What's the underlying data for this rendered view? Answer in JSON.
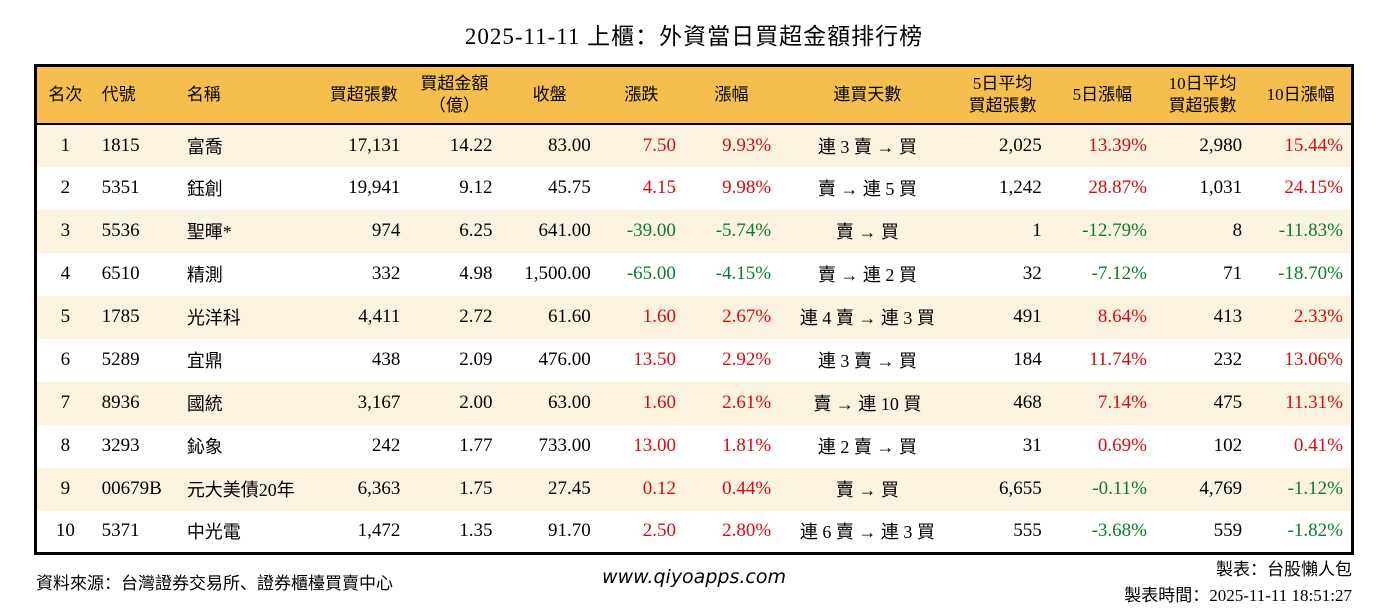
{
  "title": "2025-11-11 上櫃：外資當日買超金額排行榜",
  "colors": {
    "header_bg": "#F6BE4D",
    "alt_row_bg": "#FBF3DF",
    "positive_red": "#D70C12",
    "negative_green": "#0A7D2C",
    "border": "#000000"
  },
  "table": {
    "columns": [
      {
        "name": "rank",
        "label": "名次",
        "align": "center",
        "header_align": "center",
        "signed": false
      },
      {
        "name": "code",
        "label": "代號",
        "align": "left",
        "header_align": "left",
        "signed": false
      },
      {
        "name": "stock-name",
        "label": "名稱",
        "align": "left",
        "header_align": "left",
        "signed": false
      },
      {
        "name": "net-buy-volume",
        "label": "買超張數",
        "align": "right",
        "header_align": "center",
        "signed": false
      },
      {
        "name": "net-buy-amount",
        "label": "買超金額\n（億）",
        "align": "right",
        "header_align": "center",
        "signed": false
      },
      {
        "name": "close-price",
        "label": "收盤",
        "align": "right",
        "header_align": "center",
        "signed": false
      },
      {
        "name": "price-change",
        "label": "漲跌",
        "align": "right",
        "header_align": "center",
        "signed": true
      },
      {
        "name": "change-percent",
        "label": "漲幅",
        "align": "right",
        "header_align": "center",
        "signed": true
      },
      {
        "name": "consecutive-days",
        "label": "連買天數",
        "align": "center",
        "header_align": "center",
        "signed": false
      },
      {
        "name": "avg5-buy-volume",
        "label": "5日平均\n買超張數",
        "align": "right",
        "header_align": "center",
        "signed": false
      },
      {
        "name": "change5-percent",
        "label": "5日漲幅",
        "align": "right",
        "header_align": "center",
        "signed": true
      },
      {
        "name": "avg10-buy-volume",
        "label": "10日平均\n買超張數",
        "align": "right",
        "header_align": "center",
        "signed": false
      },
      {
        "name": "change10-percent",
        "label": "10日漲幅",
        "align": "right",
        "header_align": "center",
        "signed": true
      }
    ],
    "rows": [
      [
        "1",
        "1815",
        "富喬",
        "17,131",
        "14.22",
        "83.00",
        "7.50",
        "9.93%",
        "連 3 賣 → 買",
        "2,025",
        "13.39%",
        "2,980",
        "15.44%"
      ],
      [
        "2",
        "5351",
        "鈺創",
        "19,941",
        "9.12",
        "45.75",
        "4.15",
        "9.98%",
        "賣 → 連 5 買",
        "1,242",
        "28.87%",
        "1,031",
        "24.15%"
      ],
      [
        "3",
        "5536",
        "聖暉*",
        "974",
        "6.25",
        "641.00",
        "-39.00",
        "-5.74%",
        "賣 → 買",
        "1",
        "-12.79%",
        "8",
        "-11.83%"
      ],
      [
        "4",
        "6510",
        "精測",
        "332",
        "4.98",
        "1,500.00",
        "-65.00",
        "-4.15%",
        "賣 → 連 2 買",
        "32",
        "-7.12%",
        "71",
        "-18.70%"
      ],
      [
        "5",
        "1785",
        "光洋科",
        "4,411",
        "2.72",
        "61.60",
        "1.60",
        "2.67%",
        "連 4 賣 → 連 3 買",
        "491",
        "8.64%",
        "413",
        "2.33%"
      ],
      [
        "6",
        "5289",
        "宜鼎",
        "438",
        "2.09",
        "476.00",
        "13.50",
        "2.92%",
        "連 3 賣 → 買",
        "184",
        "11.74%",
        "232",
        "13.06%"
      ],
      [
        "7",
        "8936",
        "國統",
        "3,167",
        "2.00",
        "63.00",
        "1.60",
        "2.61%",
        "賣 → 連 10 買",
        "468",
        "7.14%",
        "475",
        "11.31%"
      ],
      [
        "8",
        "3293",
        "鈊象",
        "242",
        "1.77",
        "733.00",
        "13.00",
        "1.81%",
        "連 2 賣 → 買",
        "31",
        "0.69%",
        "102",
        "0.41%"
      ],
      [
        "9",
        "00679B",
        "元大美債20年",
        "6,363",
        "1.75",
        "27.45",
        "0.12",
        "0.44%",
        "賣 → 買",
        "6,655",
        "-0.11%",
        "4,769",
        "-1.12%"
      ],
      [
        "10",
        "5371",
        "中光電",
        "1,472",
        "1.35",
        "91.70",
        "2.50",
        "2.80%",
        "連 6 賣 → 連 3 買",
        "555",
        "-3.68%",
        "559",
        "-1.82%"
      ]
    ]
  },
  "footer": {
    "source": "資料來源：台灣證券交易所、證券櫃檯買賣中心",
    "website": "www.qiyoapps.com",
    "maker": "製表：台股懶人包",
    "made_time": "製表時間：2025-11-11 18:51:27"
  }
}
